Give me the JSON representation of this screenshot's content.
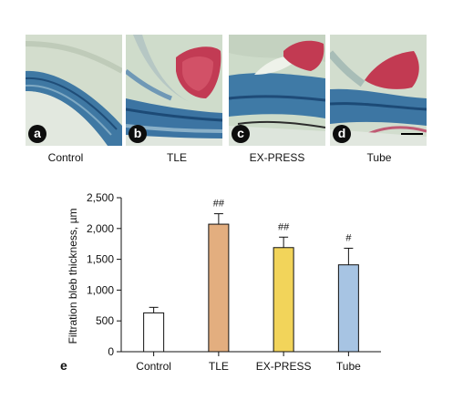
{
  "histology_panels": [
    {
      "letter": "a",
      "label": "Control",
      "bleb": false
    },
    {
      "letter": "b",
      "label": "TLE",
      "bleb": true
    },
    {
      "letter": "c",
      "label": "EX-PRESS",
      "bleb": true
    },
    {
      "letter": "d",
      "label": "Tube",
      "bleb": true
    }
  ],
  "colors": {
    "tissue_blue": "#3f7fa8",
    "tissue_pale": "#c9d8c6",
    "background_green": "#d9e3d3",
    "stain_red": "#c2344f"
  },
  "chart_data": {
    "type": "bar",
    "panel_letter": "e",
    "categories": [
      "Control",
      "TLE",
      "EX-PRESS",
      "Tube"
    ],
    "values": [
      630,
      2070,
      1690,
      1410
    ],
    "errors": [
      90,
      170,
      170,
      270
    ],
    "significance": [
      "",
      "##",
      "##",
      "#"
    ],
    "bar_colors": [
      "#ffffff",
      "#e3ae7f",
      "#f2d45a",
      "#a7c4e3"
    ],
    "ylabel": "Filtration bleb thickness, µm",
    "xlabel": "",
    "ylim": [
      0,
      2500
    ],
    "yticks": [
      0,
      500,
      1000,
      1500,
      2000,
      2500
    ],
    "ytick_labels": [
      "0",
      "500",
      "1,000",
      "1,500",
      "2,000",
      "2,500"
    ]
  }
}
